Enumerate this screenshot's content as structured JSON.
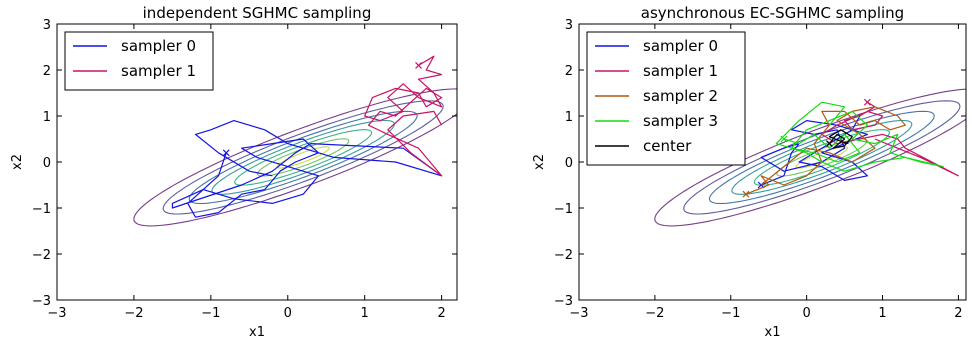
{
  "chart_data": [
    {
      "type": "line",
      "title": "independent SGHMC sampling",
      "xlabel": "x1",
      "ylabel": "x2",
      "xlim": [
        -3,
        2.2
      ],
      "ylim": [
        -3,
        3
      ],
      "xticks": [
        -3,
        -2,
        -1,
        0,
        1,
        2
      ],
      "yticks": [
        -3,
        -2,
        -1,
        0,
        1,
        2,
        3
      ],
      "xtick_labels": [
        "−3",
        "−2",
        "−1",
        "0",
        "1",
        "2"
      ],
      "ytick_labels": [
        "−3",
        "−2",
        "−1",
        "0",
        "1",
        "2",
        "3"
      ],
      "grid": false,
      "legend_position": "top-left",
      "contours": {
        "center": [
          0.2,
          0.1
        ],
        "angle_deg": 33,
        "semi_axes": [
          [
            2.6,
            0.55
          ],
          [
            2.15,
            0.45
          ],
          [
            1.75,
            0.37
          ],
          [
            1.4,
            0.3
          ],
          [
            1.05,
            0.23
          ],
          [
            0.7,
            0.16
          ],
          [
            0.4,
            0.09
          ]
        ],
        "colors": [
          "#7a3d8a",
          "#5d5f9e",
          "#4477a8",
          "#3a9aa0",
          "#3bb48a",
          "#74c462",
          "#c9dd3f"
        ]
      },
      "series": [
        {
          "name": "sampler 0",
          "color": "#1414e6",
          "points": [
            [
              -0.8,
              0.2
            ],
            [
              -0.9,
              -0.3
            ],
            [
              -1.3,
              -0.9
            ],
            [
              -1.2,
              -1.2
            ],
            [
              -0.9,
              -1.1
            ],
            [
              -0.6,
              -0.7
            ],
            [
              -0.3,
              -0.6
            ],
            [
              -0.1,
              -0.2
            ],
            [
              0.1,
              0.0
            ],
            [
              0.4,
              0.2
            ],
            [
              0.2,
              0.5
            ],
            [
              -0.2,
              0.4
            ],
            [
              -0.6,
              0.3
            ],
            [
              -0.4,
              0.1
            ],
            [
              0.0,
              -0.1
            ],
            [
              0.4,
              -0.3
            ],
            [
              0.2,
              -0.7
            ],
            [
              -0.2,
              -0.9
            ],
            [
              -0.7,
              -0.8
            ],
            [
              -1.1,
              -0.6
            ],
            [
              -1.5,
              -0.9
            ],
            [
              -1.5,
              -1.0
            ],
            [
              -0.6,
              -0.5
            ],
            [
              -0.2,
              -0.2
            ],
            [
              0.1,
              0.2
            ],
            [
              0.3,
              0.4
            ],
            [
              0.9,
              0.35
            ],
            [
              1.5,
              0.3
            ],
            [
              2.0,
              -0.3
            ],
            [
              1.4,
              0.0
            ],
            [
              0.6,
              0.1
            ],
            [
              0.0,
              0.4
            ],
            [
              -0.3,
              0.7
            ],
            [
              -0.7,
              0.9
            ],
            [
              -1.0,
              0.7
            ],
            [
              -1.2,
              0.6
            ],
            [
              -0.9,
              0.2
            ],
            [
              -0.5,
              -0.2
            ],
            [
              -0.2,
              -0.3
            ]
          ]
        },
        {
          "name": "sampler 1",
          "color": "#c81464",
          "points": [
            [
              1.7,
              2.1
            ],
            [
              1.9,
              2.3
            ],
            [
              1.8,
              2.0
            ],
            [
              2.0,
              1.9
            ],
            [
              1.7,
              1.8
            ],
            [
              1.9,
              1.5
            ],
            [
              2.0,
              1.2
            ],
            [
              1.7,
              1.4
            ],
            [
              1.5,
              1.7
            ],
            [
              1.3,
              1.4
            ],
            [
              1.5,
              1.1
            ],
            [
              1.2,
              0.9
            ],
            [
              1.0,
              1.0
            ],
            [
              1.1,
              1.4
            ],
            [
              1.4,
              1.6
            ],
            [
              1.7,
              1.5
            ],
            [
              1.8,
              1.2
            ],
            [
              2.0,
              1.4
            ],
            [
              1.8,
              1.6
            ],
            [
              1.6,
              1.3
            ],
            [
              1.4,
              1.0
            ],
            [
              1.2,
              1.1
            ],
            [
              1.05,
              0.8
            ],
            [
              1.3,
              0.6
            ],
            [
              1.7,
              0.3
            ],
            [
              2.0,
              -0.3
            ],
            [
              1.6,
              0.2
            ],
            [
              1.3,
              0.7
            ],
            [
              1.5,
              1.0
            ],
            [
              1.9,
              1.1
            ],
            [
              2.0,
              0.8
            ]
          ]
        }
      ]
    },
    {
      "type": "line",
      "title": "asynchronous EC-SGHMC sampling",
      "xlabel": "x1",
      "ylabel": "x2",
      "xlim": [
        -3,
        2.1
      ],
      "ylim": [
        -3,
        3
      ],
      "xticks": [
        -3,
        -2,
        -1,
        0,
        1,
        2
      ],
      "yticks": [
        -3,
        -2,
        -1,
        0,
        1,
        2,
        3
      ],
      "xtick_labels": [
        "−3",
        "−2",
        "−1",
        "0",
        "1",
        "2"
      ],
      "ytick_labels": [
        "−3",
        "−2",
        "−1",
        "0",
        "1",
        "2",
        "3"
      ],
      "grid": false,
      "legend_position": "top-left",
      "contours": {
        "center": [
          0.2,
          0.1
        ],
        "angle_deg": 33,
        "semi_axes": [
          [
            2.6,
            0.55
          ],
          [
            2.15,
            0.45
          ],
          [
            1.75,
            0.37
          ],
          [
            1.4,
            0.3
          ],
          [
            1.05,
            0.23
          ],
          [
            0.7,
            0.16
          ],
          [
            0.4,
            0.09
          ]
        ],
        "colors": [
          "#7a3d8a",
          "#5d5f9e",
          "#4477a8",
          "#3a9aa0",
          "#3bb48a",
          "#74c462",
          "#c9dd3f"
        ]
      },
      "series": [
        {
          "name": "sampler 0",
          "color": "#1414e6",
          "points": [
            [
              -0.6,
              -0.5
            ],
            [
              -0.3,
              -0.3
            ],
            [
              -0.2,
              0.2
            ],
            [
              -0.1,
              0.4
            ],
            [
              -0.3,
              0.3
            ],
            [
              -0.6,
              0.1
            ],
            [
              -0.3,
              -0.2
            ],
            [
              0.2,
              0.0
            ],
            [
              0.5,
              0.3
            ],
            [
              0.4,
              0.7
            ],
            [
              0.1,
              0.6
            ],
            [
              -0.2,
              0.7
            ],
            [
              0.0,
              0.9
            ],
            [
              0.4,
              0.8
            ],
            [
              0.8,
              0.6
            ],
            [
              0.5,
              0.4
            ],
            [
              0.2,
              0.2
            ],
            [
              0.6,
              0.0
            ],
            [
              0.8,
              -0.3
            ],
            [
              0.5,
              -0.4
            ],
            [
              0.2,
              -0.1
            ],
            [
              -0.1,
              0.0
            ],
            [
              0.3,
              0.4
            ],
            [
              0.6,
              0.7
            ],
            [
              0.7,
              1.0
            ]
          ]
        },
        {
          "name": "sampler 1",
          "color": "#c81464",
          "points": [
            [
              0.8,
              1.3
            ],
            [
              0.9,
              1.2
            ],
            [
              0.7,
              1.0
            ],
            [
              0.5,
              0.9
            ],
            [
              0.6,
              0.7
            ],
            [
              0.9,
              0.8
            ],
            [
              1.0,
              1.0
            ],
            [
              0.8,
              1.1
            ],
            [
              0.4,
              0.8
            ],
            [
              0.2,
              0.6
            ],
            [
              0.4,
              0.4
            ],
            [
              0.7,
              0.5
            ],
            [
              1.0,
              0.6
            ],
            [
              1.2,
              0.5
            ],
            [
              1.3,
              0.3
            ],
            [
              2.0,
              -0.3
            ],
            [
              1.5,
              0.1
            ],
            [
              0.9,
              0.5
            ]
          ]
        },
        {
          "name": "sampler 2",
          "color": "#b05a10",
          "points": [
            [
              -0.8,
              -0.7
            ],
            [
              -0.5,
              -0.5
            ],
            [
              -0.6,
              -0.3
            ],
            [
              -0.3,
              -0.5
            ],
            [
              0.0,
              -0.3
            ],
            [
              0.2,
              0.0
            ],
            [
              0.1,
              0.4
            ],
            [
              0.3,
              0.8
            ],
            [
              0.2,
              1.1
            ],
            [
              0.5,
              1.1
            ],
            [
              0.7,
              0.8
            ],
            [
              0.9,
              0.9
            ],
            [
              1.1,
              0.7
            ],
            [
              1.3,
              0.8
            ],
            [
              1.2,
              1.0
            ],
            [
              0.9,
              1.2
            ],
            [
              0.6,
              1.1
            ],
            [
              0.4,
              0.9
            ],
            [
              0.7,
              0.6
            ],
            [
              0.9,
              0.3
            ],
            [
              0.6,
              0.0
            ],
            [
              0.3,
              0.2
            ],
            [
              0.0,
              0.3
            ],
            [
              -0.3,
              -0.1
            ],
            [
              -0.6,
              -0.5
            ]
          ]
        },
        {
          "name": "sampler 3",
          "color": "#14dc14",
          "points": [
            [
              -0.3,
              0.5
            ],
            [
              -0.1,
              0.4
            ],
            [
              0.1,
              0.6
            ],
            [
              0.3,
              0.3
            ],
            [
              0.5,
              0.6
            ],
            [
              0.7,
              0.2
            ],
            [
              0.4,
              0.0
            ],
            [
              0.1,
              0.2
            ],
            [
              -0.2,
              0.3
            ],
            [
              0.0,
              0.7
            ],
            [
              0.3,
              0.9
            ],
            [
              0.6,
              1.1
            ],
            [
              0.8,
              0.8
            ],
            [
              0.6,
              0.5
            ],
            [
              0.9,
              0.4
            ],
            [
              1.2,
              0.6
            ],
            [
              1.1,
              0.2
            ],
            [
              1.5,
              0.0
            ],
            [
              1.8,
              -0.1
            ],
            [
              1.3,
              0.1
            ],
            [
              0.9,
              0.0
            ],
            [
              0.5,
              -0.2
            ],
            [
              0.2,
              0.0
            ],
            [
              0.0,
              0.2
            ],
            [
              -0.4,
              0.4
            ],
            [
              -0.1,
              0.9
            ],
            [
              0.2,
              1.3
            ],
            [
              0.5,
              1.2
            ],
            [
              0.3,
              0.8
            ]
          ]
        },
        {
          "name": "center",
          "color": "#000000",
          "points": [
            [
              0.3,
              0.4
            ],
            [
              0.4,
              0.6
            ],
            [
              0.5,
              0.5
            ],
            [
              0.35,
              0.3
            ],
            [
              0.5,
              0.35
            ],
            [
              0.6,
              0.55
            ],
            [
              0.45,
              0.7
            ],
            [
              0.3,
              0.55
            ],
            [
              0.45,
              0.45
            ],
            [
              0.55,
              0.4
            ]
          ]
        }
      ]
    }
  ]
}
